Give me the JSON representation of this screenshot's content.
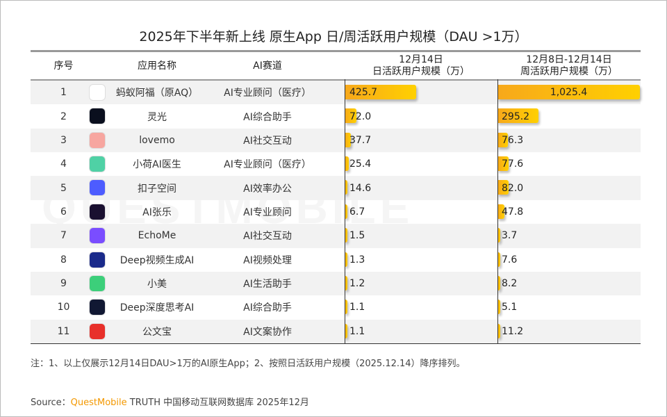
{
  "title": "2025年下半年新上线 原生App 日/周活跃用户规模（DAU >1万）",
  "watermark": "QUESTMOBILE",
  "headers": {
    "rank": "序号",
    "name": "应用名称",
    "track": "AI赛道",
    "dau_line1": "12月14日",
    "dau_line2": "日活跃用户规模（万）",
    "wau_line1": "12月8日-12月14日",
    "wau_line2": "周活跃用户规模（万）"
  },
  "colors": {
    "bar_start": "#f7a81b",
    "bar_end": "#ffd000",
    "brand": "#f39800"
  },
  "chart_data": {
    "type": "table",
    "columns": [
      "序号",
      "应用名称",
      "AI赛道",
      "12月14日 日活跃用户规模（万）",
      "12月8日-12月14日 周活跃用户规模（万）"
    ],
    "rows": [
      {
        "rank": "1",
        "name": "蚂蚁阿福（原AQ）",
        "track": "AI专业顾问（医疗）",
        "dau": 425.7,
        "dau_label": "425.7",
        "wau": 1025.4,
        "wau_label": "1,025.4",
        "icon": "ant-afu-icon",
        "icon_color": "#ffffff"
      },
      {
        "rank": "2",
        "name": "灵光",
        "track": "AI综合助手",
        "dau": 72.0,
        "dau_label": "72.0",
        "wau": 295.2,
        "wau_label": "295.2",
        "icon": "lingguang-icon",
        "icon_color": "#0a0f1e"
      },
      {
        "rank": "3",
        "name": "lovemo",
        "track": "AI社交互动",
        "dau": 37.7,
        "dau_label": "37.7",
        "wau": 76.3,
        "wau_label": "76.3",
        "icon": "lovemo-icon",
        "icon_color": "#f7a6a0"
      },
      {
        "rank": "4",
        "name": "小荷AI医生",
        "track": "AI专业顾问（医疗）",
        "dau": 25.4,
        "dau_label": "25.4",
        "wau": 77.6,
        "wau_label": "77.6",
        "icon": "xiaohe-icon",
        "icon_color": "#4fd1a5"
      },
      {
        "rank": "5",
        "name": "扣子空间",
        "track": "AI效率办公",
        "dau": 14.6,
        "dau_label": "14.6",
        "wau": 82.0,
        "wau_label": "82.0",
        "icon": "kouzi-icon",
        "icon_color": "#4d5cff"
      },
      {
        "rank": "6",
        "name": "AI张乐",
        "track": "AI专业顾问",
        "dau": 6.7,
        "dau_label": "6.7",
        "wau": 47.8,
        "wau_label": "47.8",
        "icon": "ai-zhangle-icon",
        "icon_color": "#1a1030"
      },
      {
        "rank": "7",
        "name": "EchoMe",
        "track": "AI社交互动",
        "dau": 1.5,
        "dau_label": "1.5",
        "wau": 3.7,
        "wau_label": "3.7",
        "icon": "echome-icon",
        "icon_color": "#7a4dff"
      },
      {
        "rank": "8",
        "name": "Deep视频生成AI",
        "track": "AI视频处理",
        "dau": 1.3,
        "dau_label": "1.3",
        "wau": 7.6,
        "wau_label": "7.6",
        "icon": "deep-video-icon",
        "icon_color": "#1a2a8a"
      },
      {
        "rank": "9",
        "name": "小美",
        "track": "AI生活助手",
        "dau": 1.2,
        "dau_label": "1.2",
        "wau": 8.2,
        "wau_label": "8.2",
        "icon": "xiaomei-icon",
        "icon_color": "#3ccf7a"
      },
      {
        "rank": "10",
        "name": "Deep深度思考AI",
        "track": "AI综合助手",
        "dau": 1.1,
        "dau_label": "1.1",
        "wau": 5.1,
        "wau_label": "5.1",
        "icon": "deep-think-icon",
        "icon_color": "#111833"
      },
      {
        "rank": "11",
        "name": "公文宝",
        "track": "AI文案协作",
        "dau": 1.1,
        "dau_label": "1.1",
        "wau": 11.2,
        "wau_label": "11.2",
        "icon": "gongwenbao-icon",
        "icon_color": "#e8302a"
      }
    ]
  },
  "note": "注：1、以上仅展示12月14日DAU>1万的AI原生App；2、按照日活跃用户规模（2025.12.14）降序排列。",
  "source": {
    "prefix": "Source：",
    "brand": "QuestMobile",
    "rest": " TRUTH 中国移动互联网数据库 2025年12月"
  }
}
